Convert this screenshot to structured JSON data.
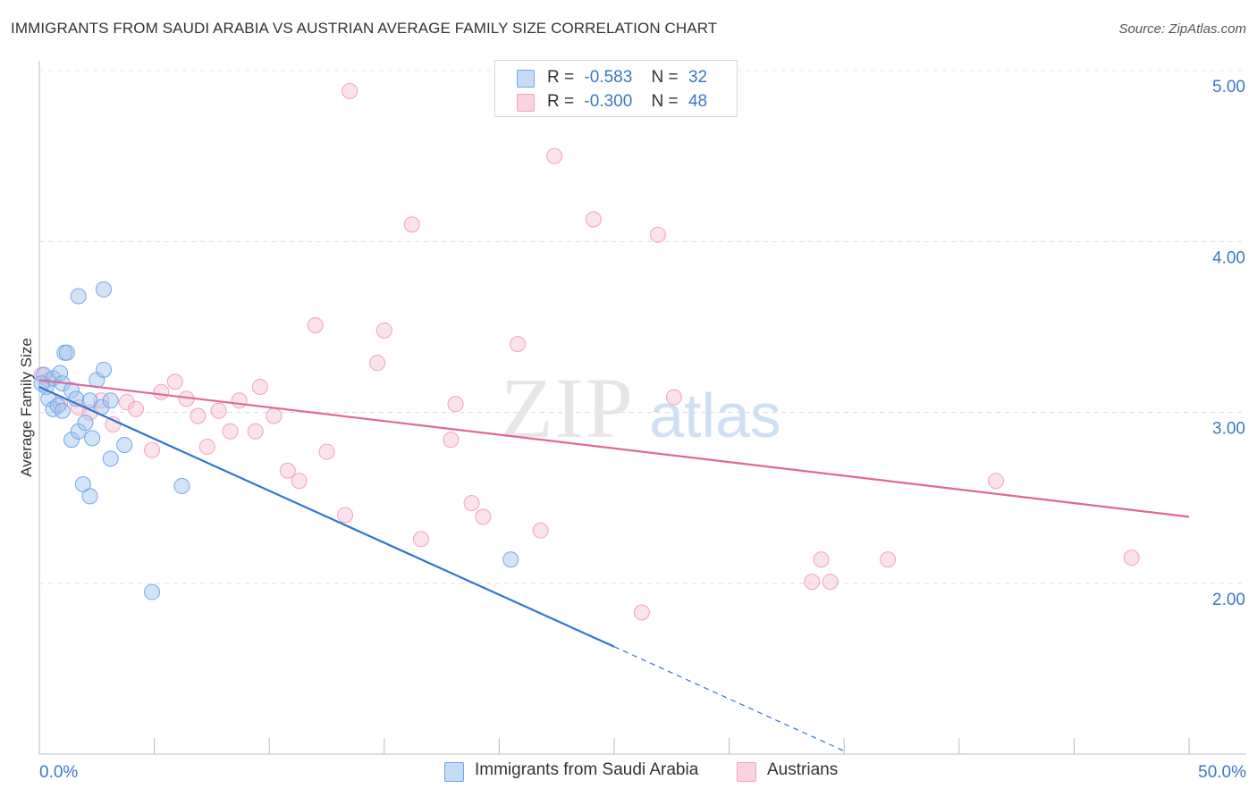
{
  "title": "IMMIGRANTS FROM SAUDI ARABIA VS AUSTRIAN AVERAGE FAMILY SIZE CORRELATION CHART",
  "source": "Source: ZipAtlas.com",
  "watermark": {
    "zip": "ZIP",
    "atlas": "atlas"
  },
  "legend": {
    "series1": {
      "r_label": "R =",
      "r_value": "-0.583",
      "n_label": "N =",
      "n_value": "32"
    },
    "series2": {
      "r_label": "R =",
      "r_value": "-0.300",
      "n_label": "N =",
      "n_value": "48"
    }
  },
  "chart_data": {
    "type": "scatter",
    "title": "IMMIGRANTS FROM SAUDI ARABIA VS AUSTRIAN AVERAGE FAMILY SIZE CORRELATION CHART",
    "xlabel": "",
    "ylabel": "Average Family Size",
    "xlim": [
      0,
      50
    ],
    "ylim": [
      1.0,
      5.15
    ],
    "x_tick_labels": [
      "0.0%",
      "50.0%"
    ],
    "y_ticks": [
      2.0,
      3.0,
      4.0,
      5.0
    ],
    "y_tick_labels": [
      "2.00",
      "3.00",
      "4.00",
      "5.00"
    ],
    "grid": true,
    "legend_position": "top-center",
    "colors": {
      "saudi": "#6fa8ec",
      "saudi_line": "#2e76d0",
      "austrian": "#f2a2ba",
      "austrian_line": "#e06894",
      "tick_label": "#3a78c8"
    },
    "series": [
      {
        "name": "Immigrants from Saudi Arabia",
        "points": [
          [
            0.2,
            3.22
          ],
          [
            0.3,
            3.15
          ],
          [
            0.4,
            3.08
          ],
          [
            0.6,
            3.2
          ],
          [
            0.6,
            3.02
          ],
          [
            0.8,
            3.04
          ],
          [
            0.9,
            3.23
          ],
          [
            1.0,
            3.17
          ],
          [
            1.0,
            3.01
          ],
          [
            1.1,
            3.35
          ],
          [
            1.2,
            3.35
          ],
          [
            1.4,
            2.84
          ],
          [
            1.4,
            3.13
          ],
          [
            1.6,
            3.08
          ],
          [
            1.7,
            3.68
          ],
          [
            1.7,
            2.89
          ],
          [
            1.9,
            2.58
          ],
          [
            2.0,
            2.94
          ],
          [
            2.2,
            3.07
          ],
          [
            2.3,
            2.85
          ],
          [
            2.2,
            2.51
          ],
          [
            2.5,
            3.19
          ],
          [
            2.7,
            3.03
          ],
          [
            2.8,
            3.25
          ],
          [
            2.8,
            3.72
          ],
          [
            3.1,
            3.07
          ],
          [
            3.1,
            2.73
          ],
          [
            3.7,
            2.81
          ],
          [
            4.9,
            1.95
          ],
          [
            6.2,
            2.57
          ],
          [
            20.5,
            2.14
          ],
          [
            0.1,
            3.17
          ]
        ],
        "trend": {
          "x0": 0,
          "y0": 3.15,
          "x1": 25,
          "y1": 1.63,
          "dashed_to": {
            "x": 35,
            "y": 1.02
          }
        }
      },
      {
        "name": "Austrians",
        "points": [
          [
            0.1,
            3.22
          ],
          [
            0.9,
            3.05
          ],
          [
            1.7,
            3.03
          ],
          [
            2.2,
            3.0
          ],
          [
            2.7,
            3.07
          ],
          [
            3.2,
            2.93
          ],
          [
            3.8,
            3.06
          ],
          [
            4.2,
            3.02
          ],
          [
            4.9,
            2.78
          ],
          [
            5.3,
            3.12
          ],
          [
            5.9,
            3.18
          ],
          [
            6.4,
            3.08
          ],
          [
            6.9,
            2.98
          ],
          [
            7.3,
            2.8
          ],
          [
            7.8,
            3.01
          ],
          [
            8.3,
            2.89
          ],
          [
            8.7,
            3.07
          ],
          [
            9.4,
            2.89
          ],
          [
            9.6,
            3.15
          ],
          [
            10.2,
            2.98
          ],
          [
            10.8,
            2.66
          ],
          [
            11.3,
            2.6
          ],
          [
            12.0,
            3.51
          ],
          [
            12.5,
            2.77
          ],
          [
            13.3,
            2.4
          ],
          [
            13.5,
            4.88
          ],
          [
            14.7,
            3.29
          ],
          [
            15.0,
            3.48
          ],
          [
            16.2,
            4.1
          ],
          [
            16.6,
            2.26
          ],
          [
            17.9,
            2.84
          ],
          [
            18.1,
            3.05
          ],
          [
            18.8,
            2.47
          ],
          [
            19.3,
            2.39
          ],
          [
            20.8,
            3.4
          ],
          [
            21.8,
            2.31
          ],
          [
            22.4,
            4.5
          ],
          [
            24.1,
            4.13
          ],
          [
            26.2,
            1.83
          ],
          [
            26.9,
            4.04
          ],
          [
            27.6,
            3.09
          ],
          [
            33.6,
            2.01
          ],
          [
            34.0,
            2.14
          ],
          [
            34.4,
            2.01
          ],
          [
            36.9,
            2.14
          ],
          [
            41.6,
            2.6
          ],
          [
            47.5,
            2.15
          ],
          [
            0.4,
            3.19
          ]
        ],
        "trend": {
          "x0": 0,
          "y0": 3.19,
          "x1": 50,
          "y1": 2.39
        }
      }
    ]
  }
}
